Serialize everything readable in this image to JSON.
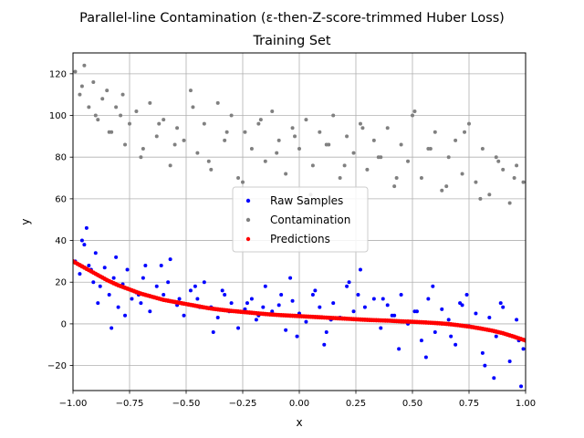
{
  "chart_data": {
    "type": "scatter",
    "title": "Parallel-line Contamination (ε-then-Z-score-trimmed Huber Loss)",
    "subtitle": "Training Set",
    "xlabel": "x",
    "ylabel": "y",
    "xlim": [
      -1.0,
      1.0
    ],
    "ylim": [
      -32,
      130
    ],
    "grid": true,
    "legend_position": "center",
    "x_ticks": [
      {
        "value": -1.0,
        "label": "−1.00"
      },
      {
        "value": -0.75,
        "label": "−0.75"
      },
      {
        "value": -0.5,
        "label": "−0.50"
      },
      {
        "value": -0.25,
        "label": "−0.25"
      },
      {
        "value": 0.0,
        "label": "0.00"
      },
      {
        "value": 0.25,
        "label": "0.25"
      },
      {
        "value": 0.5,
        "label": "0.50"
      },
      {
        "value": 0.75,
        "label": "0.75"
      },
      {
        "value": 1.0,
        "label": "1.00"
      }
    ],
    "y_ticks": [
      {
        "value": -20,
        "label": "−20"
      },
      {
        "value": 0,
        "label": "0"
      },
      {
        "value": 20,
        "label": "20"
      },
      {
        "value": 40,
        "label": "40"
      },
      {
        "value": 60,
        "label": "60"
      },
      {
        "value": 80,
        "label": "80"
      },
      {
        "value": 100,
        "label": "100"
      },
      {
        "value": 120,
        "label": "120"
      }
    ],
    "series": [
      {
        "name": "Raw Samples",
        "color": "#0000ff",
        "x": [
          -0.99,
          -0.97,
          -0.96,
          -0.94,
          -0.93,
          -0.91,
          -0.9,
          -0.88,
          -0.86,
          -0.84,
          -0.82,
          -0.8,
          -0.78,
          -0.76,
          -0.74,
          -0.72,
          -0.7,
          -0.68,
          -0.66,
          -0.63,
          -0.6,
          -0.57,
          -0.54,
          -0.51,
          -0.48,
          -0.45,
          -0.42,
          -0.39,
          -0.36,
          -0.33,
          -0.3,
          -0.27,
          -0.24,
          -0.21,
          -0.18,
          -0.15,
          -0.12,
          -0.09,
          -0.06,
          -0.03,
          0.0,
          0.03,
          0.06,
          0.09,
          0.12,
          0.15,
          0.18,
          0.21,
          0.24,
          0.27,
          0.3,
          0.33,
          0.36,
          0.39,
          0.42,
          0.45,
          0.48,
          0.51,
          0.54,
          0.57,
          0.6,
          0.63,
          0.66,
          0.69,
          0.72,
          0.75,
          0.78,
          0.81,
          0.84,
          0.87,
          0.9,
          0.93,
          0.96,
          0.99,
          -0.95,
          -0.89,
          -0.83,
          -0.77,
          -0.69,
          -0.61,
          -0.53,
          -0.46,
          -0.38,
          -0.31,
          -0.23,
          -0.16,
          -0.08,
          -0.01,
          0.07,
          0.14,
          0.22,
          0.29,
          0.37,
          0.44,
          0.52,
          0.59,
          0.67,
          0.74,
          0.82,
          0.89,
          0.97,
          -0.92,
          -0.81,
          -0.71,
          -0.58,
          -0.44,
          -0.34,
          -0.19,
          -0.04,
          0.11,
          0.26,
          0.41,
          0.56,
          0.71,
          0.86,
          0.98
        ],
        "y": [
          30,
          24,
          40,
          46,
          28,
          20,
          34,
          18,
          27,
          14,
          22,
          8,
          19,
          26,
          12,
          15,
          10,
          28,
          6,
          18,
          14,
          31,
          9,
          4,
          16,
          12,
          20,
          8,
          3,
          14,
          10,
          -2,
          7,
          12,
          4,
          18,
          6,
          9,
          -3,
          11,
          5,
          1,
          14,
          8,
          -4,
          10,
          3,
          18,
          6,
          26,
          2,
          12,
          -2,
          9,
          4,
          14,
          0,
          6,
          -8,
          12,
          -4,
          7,
          2,
          -10,
          9,
          -1,
          5,
          -14,
          3,
          -6,
          8,
          -18,
          2,
          -12,
          38,
          10,
          -2,
          4,
          22,
          28,
          12,
          18,
          -4,
          6,
          10,
          8,
          14,
          -6,
          16,
          2,
          20,
          8,
          12,
          -12,
          6,
          18,
          -6,
          14,
          -20,
          10,
          -8,
          26,
          32,
          14,
          20,
          8,
          16,
          2,
          22,
          -10,
          14,
          4,
          -16,
          10,
          -26,
          -30
        ]
      },
      {
        "name": "Contamination",
        "color": "#808080",
        "x": [
          -0.99,
          -0.97,
          -0.95,
          -0.93,
          -0.91,
          -0.89,
          -0.87,
          -0.85,
          -0.83,
          -0.81,
          -0.79,
          -0.77,
          -0.75,
          -0.72,
          -0.69,
          -0.66,
          -0.63,
          -0.6,
          -0.57,
          -0.54,
          -0.51,
          -0.48,
          -0.45,
          -0.42,
          -0.39,
          -0.36,
          -0.33,
          -0.3,
          -0.27,
          -0.24,
          -0.21,
          -0.18,
          -0.15,
          -0.12,
          -0.09,
          -0.06,
          -0.03,
          0.0,
          0.03,
          0.06,
          0.09,
          0.12,
          0.15,
          0.18,
          0.21,
          0.24,
          0.27,
          0.3,
          0.33,
          0.36,
          0.39,
          0.42,
          0.45,
          0.48,
          0.51,
          0.54,
          0.57,
          0.6,
          0.63,
          0.66,
          0.69,
          0.72,
          0.75,
          0.78,
          0.81,
          0.84,
          0.87,
          0.9,
          0.93,
          0.96,
          0.99,
          -0.96,
          -0.9,
          -0.84,
          -0.78,
          -0.7,
          -0.62,
          -0.55,
          -0.47,
          -0.4,
          -0.32,
          -0.25,
          -0.17,
          -0.1,
          -0.02,
          0.05,
          0.13,
          0.2,
          0.28,
          0.35,
          0.43,
          0.5,
          0.58,
          0.65,
          0.73,
          0.8,
          0.88,
          0.95
        ],
        "y": [
          121,
          110,
          124,
          104,
          116,
          98,
          108,
          112,
          92,
          104,
          100,
          86,
          96,
          102,
          84,
          106,
          90,
          98,
          76,
          94,
          88,
          112,
          82,
          96,
          74,
          106,
          88,
          100,
          70,
          92,
          84,
          96,
          78,
          102,
          88,
          72,
          94,
          84,
          98,
          76,
          92,
          86,
          100,
          70,
          90,
          82,
          96,
          74,
          88,
          80,
          94,
          66,
          86,
          78,
          102,
          70,
          84,
          92,
          64,
          80,
          88,
          72,
          96,
          68,
          84,
          62,
          80,
          74,
          58,
          76,
          68,
          114,
          100,
          92,
          110,
          80,
          96,
          86,
          104,
          78,
          92,
          68,
          98,
          82,
          90,
          62,
          86,
          76,
          94,
          80,
          70,
          100,
          84,
          66,
          92,
          60,
          78,
          70
        ]
      },
      {
        "name": "Predictions",
        "color": "#ff0000",
        "x": [
          -1.0,
          -0.95,
          -0.9,
          -0.85,
          -0.8,
          -0.75,
          -0.7,
          -0.65,
          -0.6,
          -0.55,
          -0.5,
          -0.45,
          -0.4,
          -0.35,
          -0.3,
          -0.25,
          -0.2,
          -0.15,
          -0.1,
          -0.05,
          0.0,
          0.05,
          0.1,
          0.15,
          0.2,
          0.25,
          0.3,
          0.35,
          0.4,
          0.45,
          0.5,
          0.55,
          0.6,
          0.65,
          0.7,
          0.75,
          0.8,
          0.85,
          0.9,
          0.95,
          1.0
        ],
        "y": [
          30,
          27,
          24,
          21,
          18.5,
          16.5,
          14.5,
          13,
          11.5,
          10.5,
          9.5,
          8.5,
          7.5,
          6.8,
          6.2,
          5.7,
          5.2,
          4.7,
          4.3,
          4.0,
          3.7,
          3.4,
          3.1,
          2.8,
          2.5,
          2.2,
          1.9,
          1.7,
          1.5,
          1.2,
          1.0,
          0.7,
          0.4,
          0.0,
          -0.6,
          -1.3,
          -2.2,
          -3.2,
          -4.5,
          -6.2,
          -8.0
        ]
      }
    ]
  }
}
